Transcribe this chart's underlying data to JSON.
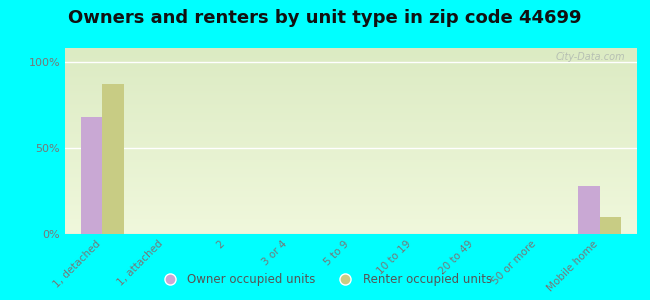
{
  "title": "Owners and renters by unit type in zip code 44699",
  "categories": [
    "1, detached",
    "1, attached",
    "2",
    "3 or 4",
    "5 to 9",
    "10 to 19",
    "20 to 49",
    "50 or more",
    "Mobile home"
  ],
  "owner_values": [
    68,
    0,
    0,
    0,
    0,
    0,
    0,
    0,
    28
  ],
  "renter_values": [
    87,
    0,
    0,
    0,
    0,
    0,
    0,
    0,
    10
  ],
  "owner_color": "#c9a8d4",
  "renter_color": "#c8cc84",
  "background_color": "#00ffff",
  "yticks": [
    0,
    50,
    100
  ],
  "ytick_labels": [
    "0%",
    "50%",
    "100%"
  ],
  "ylim": [
    0,
    108
  ],
  "bar_width": 0.35,
  "legend_owner": "Owner occupied units",
  "legend_renter": "Renter occupied units",
  "watermark": "City-Data.com",
  "title_fontsize": 13,
  "tick_fontsize": 7.5,
  "label_color": "#777777"
}
